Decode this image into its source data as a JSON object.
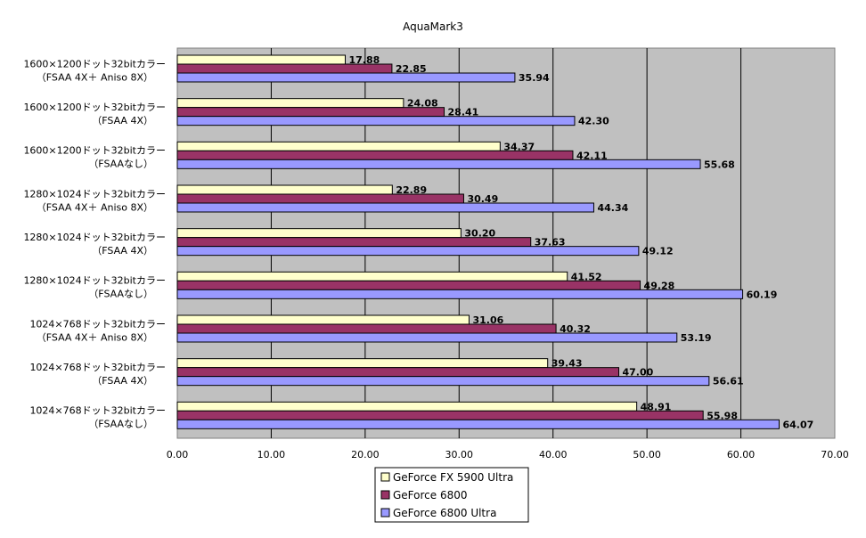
{
  "chart_data": {
    "type": "bar",
    "orientation": "horizontal",
    "title": "AquaMark3",
    "xlabel": "",
    "ylabel": "",
    "xlim": [
      0,
      70
    ],
    "x_ticks": [
      "0.00",
      "10.00",
      "20.00",
      "30.00",
      "40.00",
      "50.00",
      "60.00",
      "70.00"
    ],
    "grid": true,
    "legend_position": "bottom-center",
    "plot_background": "#c0c0c0",
    "categories": [
      {
        "line1": "1600×1200ドット32bitカラー",
        "line2": "（FSAA 4X＋ Aniso 8X）"
      },
      {
        "line1": "1600×1200ドット32bitカラー",
        "line2": "（FSAA 4X）"
      },
      {
        "line1": "1600×1200ドット32bitカラー",
        "line2": "（FSAAなし）"
      },
      {
        "line1": "1280×1024ドット32bitカラー",
        "line2": "（FSAA 4X＋ Aniso 8X）"
      },
      {
        "line1": "1280×1024ドット32bitカラー",
        "line2": "（FSAA 4X）"
      },
      {
        "line1": "1280×1024ドット32bitカラー",
        "line2": "（FSAAなし）"
      },
      {
        "line1": "1024×768ドット32bitカラー",
        "line2": "（FSAA 4X＋ Aniso 8X）"
      },
      {
        "line1": "1024×768ドット32bitカラー",
        "line2": "（FSAA 4X）"
      },
      {
        "line1": "1024×768ドット32bitカラー",
        "line2": "（FSAAなし）"
      }
    ],
    "series": [
      {
        "name": "GeForce FX 5900 Ultra",
        "color": "#ffffcc",
        "values": [
          17.88,
          24.08,
          34.37,
          22.89,
          30.2,
          41.52,
          31.06,
          39.43,
          48.91
        ],
        "labels": [
          "17.88",
          "24.08",
          "34.37",
          "22.89",
          "30.20",
          "41.52",
          "31.06",
          "39.43",
          "48.91"
        ]
      },
      {
        "name": "GeForce 6800",
        "color": "#993366",
        "values": [
          22.85,
          28.41,
          42.11,
          30.49,
          37.63,
          49.28,
          40.32,
          47.0,
          55.98
        ],
        "labels": [
          "22.85",
          "28.41",
          "42.11",
          "30.49",
          "37.63",
          "49.28",
          "40.32",
          "47.00",
          "55.98"
        ]
      },
      {
        "name": "GeForce 6800 Ultra",
        "color": "#9999ff",
        "values": [
          35.94,
          42.3,
          55.68,
          44.34,
          49.12,
          60.19,
          53.19,
          56.61,
          64.07
        ],
        "labels": [
          "35.94",
          "42.30",
          "55.68",
          "44.34",
          "49.12",
          "60.19",
          "53.19",
          "56.61",
          "64.07"
        ]
      }
    ]
  }
}
